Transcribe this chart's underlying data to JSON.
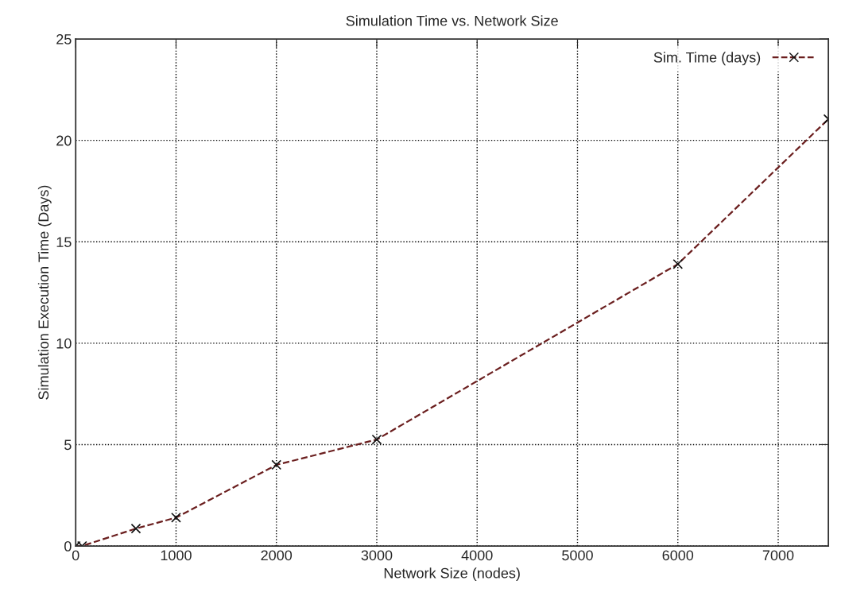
{
  "chart_data": {
    "type": "line",
    "title": "Simulation Time vs. Network Size",
    "xlabel": "Network Size (nodes)",
    "ylabel": "Simulation Execution Time (Days)",
    "series": [
      {
        "name": "Sim. Time (days)",
        "color": "#6b1f1f",
        "x": [
          0,
          64,
          600,
          1000,
          2000,
          3000,
          6000,
          7500
        ],
        "values": [
          0,
          0,
          0.86,
          1.4,
          4.0,
          5.25,
          13.9,
          21.05
        ]
      }
    ],
    "xlim": [
      0,
      7500
    ],
    "xticks": [
      0,
      1000,
      2000,
      3000,
      4000,
      5000,
      6000,
      7000
    ],
    "ylim": [
      0,
      25
    ],
    "yticks": [
      0,
      5,
      10,
      15,
      20,
      25
    ],
    "grid": true,
    "legend": "top right",
    "marker": "cross",
    "line_style": "dashed"
  }
}
